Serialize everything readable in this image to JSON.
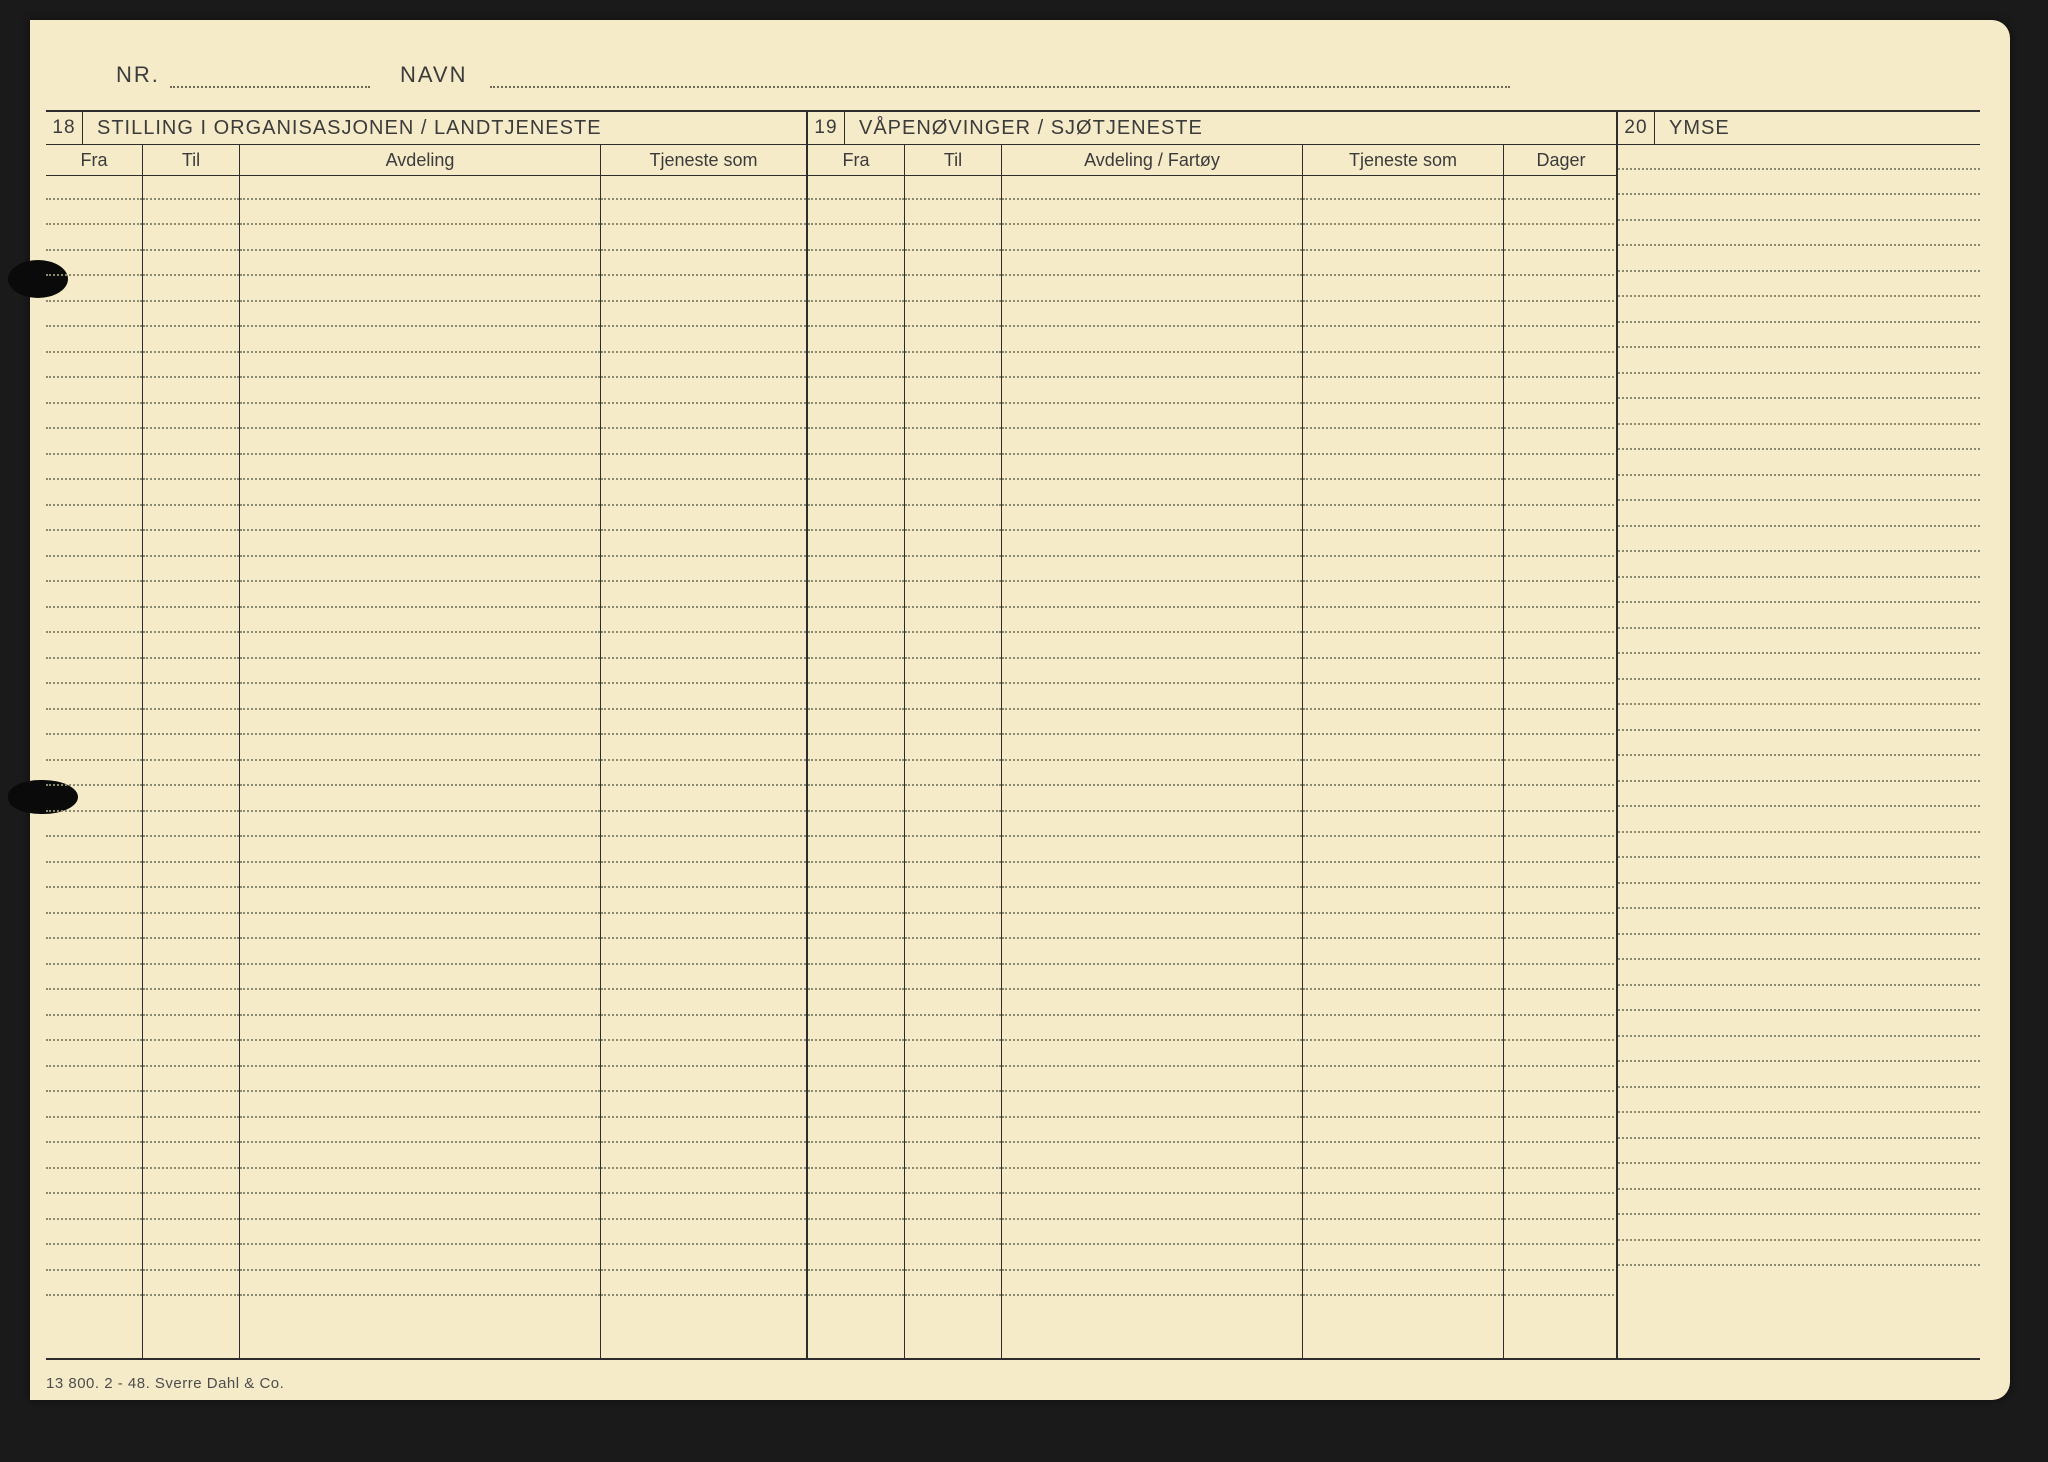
{
  "header": {
    "nr_label": "NR.",
    "navn_label": "NAVN"
  },
  "sections": {
    "s18": {
      "num": "18",
      "title": "STILLING I ORGANISASJONEN / LANDTJENESTE",
      "cols": {
        "c1": "Fra",
        "c2": "Til",
        "c3": "Avdeling",
        "c4": "Tjeneste som"
      }
    },
    "s19": {
      "num": "19",
      "title": "VÅPENØVINGER / SJØTJENESTE",
      "cols": {
        "c1": "Fra",
        "c2": "Til",
        "c3": "Avdeling / Fartøy",
        "c4": "Tjeneste som",
        "c5": "Dager"
      }
    },
    "s20": {
      "num": "20",
      "title": "YMSE"
    }
  },
  "footer": "13 800. 2 - 48. Sverre Dahl & Co.",
  "layout": {
    "row_count": 44,
    "colors": {
      "paper": "#f6ebc9",
      "ink": "#2d2d2d",
      "dots": "#8a8a70"
    }
  }
}
